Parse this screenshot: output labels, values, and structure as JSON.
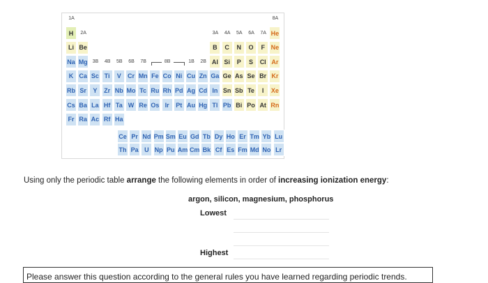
{
  "table": {
    "group_labels": {
      "a": [
        "1A",
        "2A",
        "3A",
        "4A",
        "5A",
        "6A",
        "7A",
        "8A"
      ],
      "b": [
        "3B",
        "4B",
        "5B",
        "6B",
        "7B",
        "8B",
        "1B",
        "2B"
      ]
    },
    "periods": [
      [
        "H",
        "He"
      ],
      [
        "Li",
        "Be",
        "B",
        "C",
        "N",
        "O",
        "F",
        "Ne"
      ],
      [
        "Na",
        "Mg",
        "Al",
        "Si",
        "P",
        "S",
        "Cl",
        "Ar"
      ],
      [
        "K",
        "Ca",
        "Sc",
        "Ti",
        "V",
        "Cr",
        "Mn",
        "Fe",
        "Co",
        "Ni",
        "Cu",
        "Zn",
        "Ga",
        "Ge",
        "As",
        "Se",
        "Br",
        "Kr"
      ],
      [
        "Rb",
        "Sr",
        "Y",
        "Zr",
        "Nb",
        "Mo",
        "Tc",
        "Ru",
        "Rh",
        "Pd",
        "Ag",
        "Cd",
        "In",
        "Sn",
        "Sb",
        "Te",
        "I",
        "Xe"
      ],
      [
        "Cs",
        "Ba",
        "La",
        "Hf",
        "Ta",
        "W",
        "Re",
        "Os",
        "Ir",
        "Pt",
        "Au",
        "Hg",
        "Tl",
        "Pb",
        "Bi",
        "Po",
        "At",
        "Rn"
      ],
      [
        "Fr",
        "Ra",
        "Ac",
        "Rf",
        "Ha"
      ]
    ],
    "lanthanides": [
      "Ce",
      "Pr",
      "Nd",
      "Pm",
      "Sm",
      "Eu",
      "Gd",
      "Tb",
      "Dy",
      "Ho",
      "Er",
      "Tm",
      "Yb",
      "Lu"
    ],
    "actinides": [
      "Th",
      "Pa",
      "U",
      "Np",
      "Pu",
      "Am",
      "Cm",
      "Bk",
      "Cf",
      "Es",
      "Fm",
      "Md",
      "No",
      "Lr"
    ]
  },
  "question": {
    "prompt": [
      "Using only the periodic table ",
      "arrange",
      " the following elements in order of ",
      "increasing ionization energy",
      ":"
    ],
    "elements": "argon, silicon, magnesium, phosphorus",
    "lowest": "Lowest",
    "highest": "Highest",
    "note": "Please answer this question according to the general rules you have learned regarding periodic trends."
  }
}
